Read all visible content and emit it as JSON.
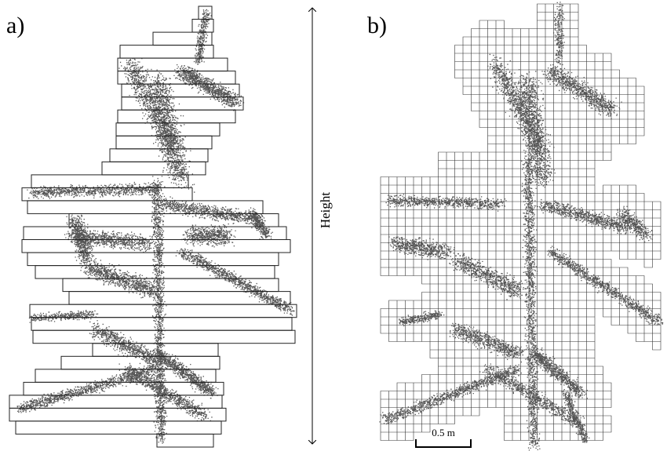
{
  "panels": [
    {
      "label": "a)"
    },
    {
      "label": "b)"
    }
  ],
  "axis": {
    "label": "Height"
  },
  "scale_bar": {
    "label": "0.5 m"
  }
}
